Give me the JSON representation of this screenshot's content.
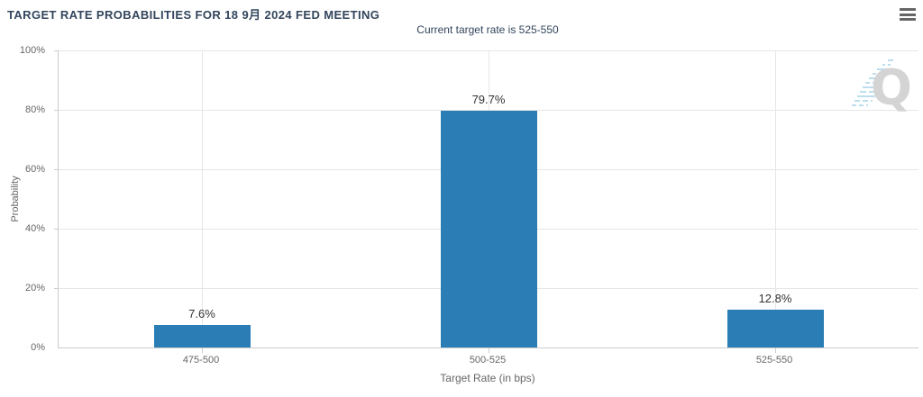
{
  "header": {
    "title": "TARGET RATE PROBABILITIES FOR 18 9月 2024 FED MEETING",
    "menu_icon": "hamburger-icon"
  },
  "chart_data": {
    "type": "bar",
    "title": "TARGET RATE PROBABILITIES FOR 18 9月 2024 FED MEETING",
    "subtitle": "Current target rate is 525-550",
    "categories": [
      "475-500",
      "500-525",
      "525-550"
    ],
    "values": [
      7.6,
      79.7,
      12.8
    ],
    "value_labels": [
      "7.6%",
      "79.7%",
      "12.8%"
    ],
    "xlabel": "Target Rate (in bps)",
    "ylabel": "Probability",
    "ylim": [
      0,
      100
    ],
    "yticks": [
      "100%",
      "80%",
      "60%",
      "40%",
      "20%",
      "0%"
    ],
    "grid": true,
    "legend": "none",
    "bar_color": "#2a7db5",
    "title_color": "#32455c",
    "subtitle_color": "#32455c",
    "gridline_color": "#e6e6e6",
    "axis_color": "#cccccc",
    "watermark_letter": "Q"
  }
}
